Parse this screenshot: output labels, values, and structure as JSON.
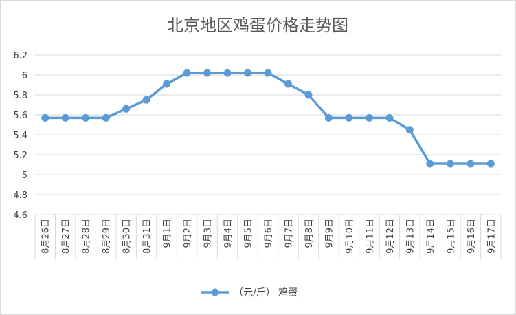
{
  "chart_data": {
    "type": "line",
    "title": "北京地区鸡蛋价格走势图",
    "categories": [
      "8月26日",
      "8月27日",
      "8月28日",
      "8月29日",
      "8月30日",
      "8月31日",
      "9月1日",
      "9月2日",
      "9月3日",
      "9月4日",
      "9月5日",
      "9月6日",
      "9月7日",
      "9月8日",
      "9月9日",
      "9月10日",
      "9月11日",
      "9月12日",
      "9月13日",
      "9月14日",
      "9月15日",
      "9月16日",
      "9月17日"
    ],
    "series": [
      {
        "name": "（元/斤） 鸡蛋",
        "color": "#5b9bd5",
        "values": [
          5.57,
          5.57,
          5.57,
          5.57,
          5.66,
          5.75,
          5.91,
          6.02,
          6.02,
          6.02,
          6.02,
          6.02,
          5.91,
          5.8,
          5.57,
          5.57,
          5.57,
          5.57,
          5.45,
          5.11,
          5.11,
          5.11,
          5.11
        ]
      }
    ],
    "ylim": [
      4.6,
      6.2
    ],
    "yticks": [
      "4.6",
      "4.8",
      "5",
      "5.2",
      "5.4",
      "5.6",
      "5.8",
      "6",
      "6.2"
    ],
    "grid": true,
    "legend": "bottom"
  }
}
